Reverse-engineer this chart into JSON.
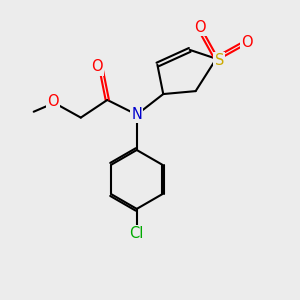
{
  "bg_color": "#ececec",
  "bond_color": "#000000",
  "O_color": "#ff0000",
  "N_color": "#0000cd",
  "S_color": "#ccaa00",
  "Cl_color": "#00aa00",
  "line_width": 1.5,
  "font_size": 10.5,
  "xlim": [
    0.0,
    9.5
  ],
  "ylim": [
    0.5,
    10.5
  ],
  "Sx": 7.0,
  "Sy": 8.6,
  "C2x": 6.3,
  "C2y": 7.5,
  "C3x": 5.2,
  "C3y": 7.4,
  "C4x": 5.0,
  "C4y": 8.4,
  "C5x": 6.1,
  "C5y": 8.9,
  "SO1x": 6.5,
  "SO1y": 9.5,
  "SO2x": 7.9,
  "SO2y": 9.1,
  "Nx": 4.3,
  "Ny": 6.7,
  "COx": 3.3,
  "COy": 7.2,
  "COOx": 3.1,
  "COOy": 8.2,
  "CH2x": 2.4,
  "CH2y": 6.6,
  "OCH3x": 1.5,
  "OCH3y": 7.1,
  "Bcx": 4.3,
  "Bcy": 4.5,
  "Brad": 1.0
}
